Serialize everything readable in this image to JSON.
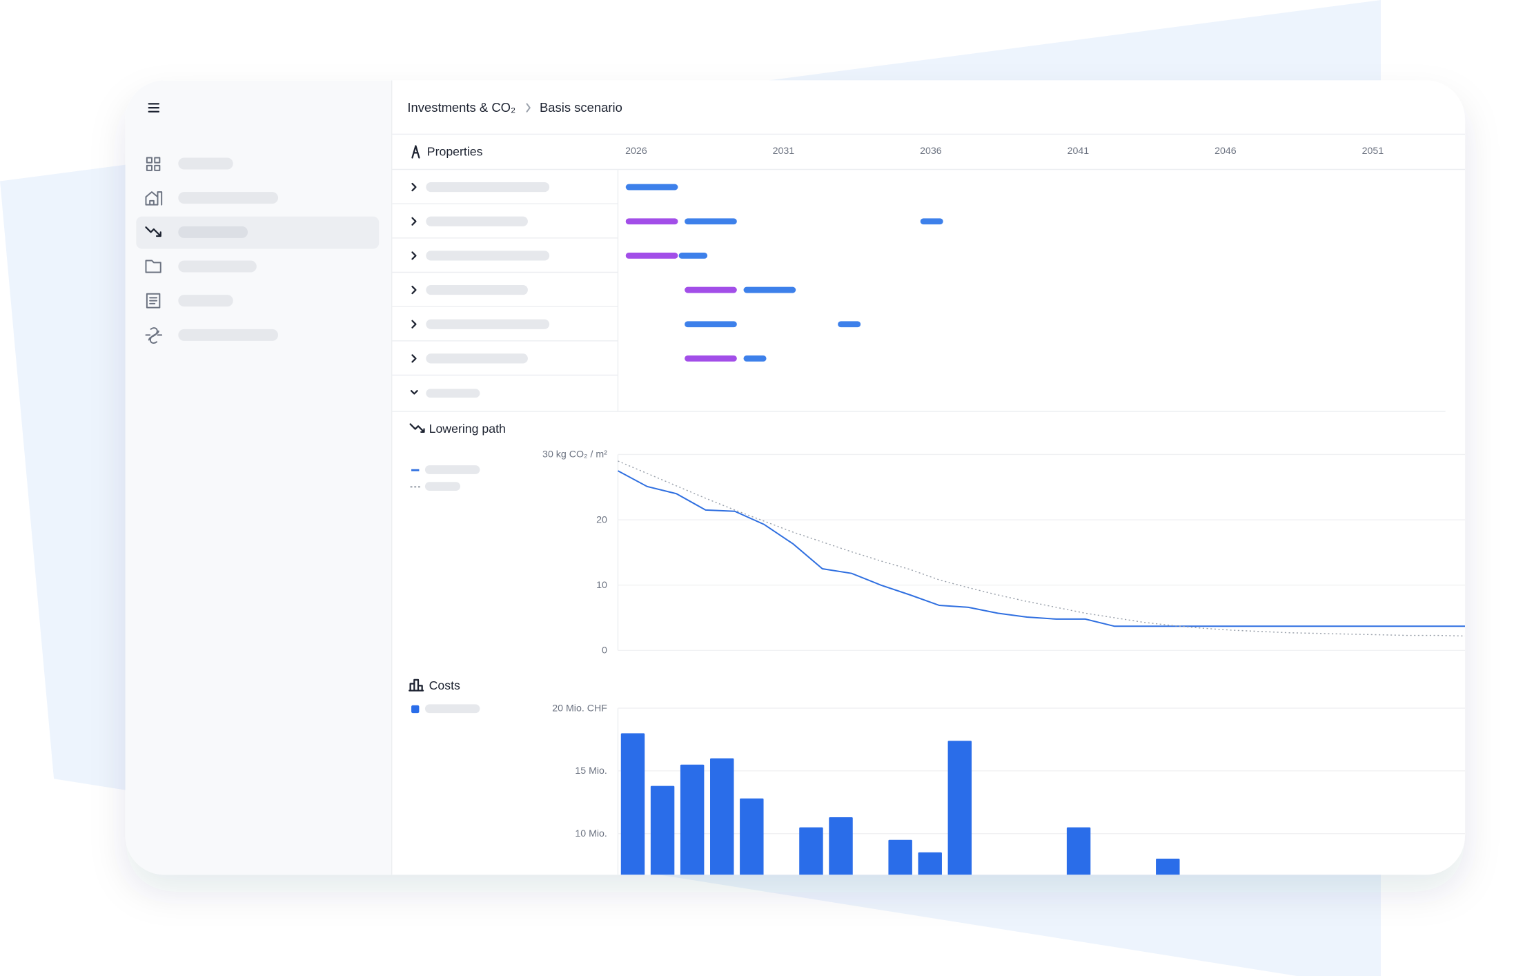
{
  "breadcrumb": [
    "Investments & CO₂",
    "Basis scenario"
  ],
  "chart_data": [
    {
      "type": "gantt",
      "title": "Properties",
      "xlim": [
        2025.75,
        2054.5
      ],
      "xticks": [
        2026,
        2031,
        2036,
        2041,
        2046,
        2051
      ],
      "rows": [
        {
          "segments": [
            {
              "start": 2026,
              "end": 2027.8,
              "color": "#3d80ea"
            }
          ]
        },
        {
          "segments": [
            {
              "start": 2026,
              "end": 2027.8,
              "color": "#a24ee8"
            },
            {
              "start": 2028,
              "end": 2029.8,
              "color": "#3d80ea"
            },
            {
              "start": 2036,
              "end": 2036.8,
              "color": "#3d80ea"
            }
          ]
        },
        {
          "segments": [
            {
              "start": 2027.8,
              "end": 2028.8,
              "color": "#3d80ea"
            },
            {
              "start": 2026,
              "end": 2027.8,
              "color": "#a24ee8"
            }
          ]
        },
        {
          "segments": [
            {
              "start": 2028,
              "end": 2029.8,
              "color": "#a24ee8"
            },
            {
              "start": 2030,
              "end": 2031.8,
              "color": "#3d80ea"
            }
          ]
        },
        {
          "segments": [
            {
              "start": 2028,
              "end": 2029.8,
              "color": "#3d80ea"
            },
            {
              "start": 2033.2,
              "end": 2034,
              "color": "#3d80ea"
            }
          ]
        },
        {
          "segments": [
            {
              "start": 2028,
              "end": 2029.8,
              "color": "#a24ee8"
            },
            {
              "start": 2030,
              "end": 2030.8,
              "color": "#3d80ea"
            }
          ]
        }
      ]
    },
    {
      "type": "line",
      "title": "Lowering path",
      "x": [
        2026,
        2027,
        2028,
        2029,
        2030,
        2031,
        2032,
        2033,
        2034,
        2035,
        2036,
        2037,
        2038,
        2039,
        2040,
        2041,
        2042,
        2043,
        2044,
        2045,
        2046,
        2047,
        2048,
        2049,
        2050,
        2051,
        2052,
        2053,
        2054,
        2055
      ],
      "xlim": [
        2026,
        2055
      ],
      "ylim": [
        0,
        30
      ],
      "yticks": [
        {
          "value": 30,
          "label": "30 kg CO₂ / m²"
        },
        20,
        10,
        0
      ],
      "grid": true,
      "series": [
        {
          "color": "#2f6fe0",
          "style": "solid",
          "values": [
            27.5,
            25.1,
            24,
            21.5,
            21.3,
            19.3,
            16.3,
            12.5,
            11.8,
            10,
            8.5,
            6.9,
            6.6,
            5.7,
            5.1,
            4.8,
            4.8,
            3.7,
            3.7,
            3.7,
            3.7,
            3.7,
            3.7,
            3.7,
            3.7,
            3.7,
            3.7,
            3.7,
            3.7,
            3.7
          ]
        },
        {
          "color": "#9aa1ab",
          "style": "dotted",
          "values": [
            29,
            27.1,
            25.2,
            23.3,
            21.5,
            19.8,
            18.1,
            16.6,
            15.1,
            13.7,
            12.4,
            10.8,
            9.6,
            8.5,
            7.5,
            6.6,
            5.7,
            5,
            4.3,
            3.8,
            3.4,
            3.1,
            2.9,
            2.7,
            2.6,
            2.5,
            2.4,
            2.3,
            2.3,
            2.2
          ]
        }
      ]
    },
    {
      "type": "bar",
      "title": "Costs",
      "x": [
        2026,
        2027,
        2028,
        2029,
        2030,
        2032,
        2033,
        2035,
        2036,
        2037,
        2041,
        2044
      ],
      "values": [
        18,
        13.8,
        15.5,
        16,
        12.8,
        10.5,
        11.3,
        9.5,
        8.5,
        17.4,
        10.5,
        8
      ],
      "color": "#2a6de9",
      "xlim": [
        2025.5,
        2054
      ],
      "ylim": [
        0,
        20
      ],
      "yticks": [
        {
          "value": 20,
          "label": "20 Mio. CHF"
        },
        {
          "value": 15,
          "label": "15 Mio."
        },
        {
          "value": 10,
          "label": "10 Mio."
        }
      ],
      "grid": true
    }
  ]
}
